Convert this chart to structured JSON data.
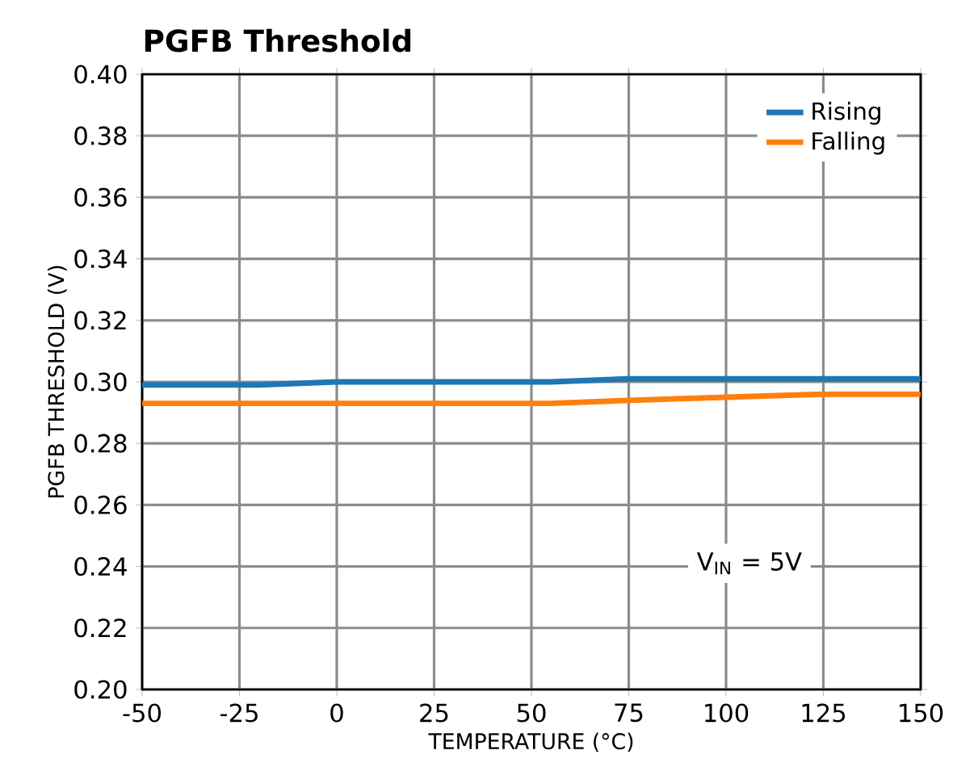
{
  "chart_data": {
    "type": "line",
    "title": "PGFB Threshold",
    "xlabel": "TEMPERATURE (°C)",
    "ylabel": "PGFB THRESHOLD (V)",
    "series": [
      {
        "name": "Rising",
        "color": "#1f77b4",
        "x": [
          -50,
          -20,
          0,
          25,
          55,
          75,
          100,
          125,
          150
        ],
        "values": [
          0.299,
          0.299,
          0.3,
          0.3,
          0.3,
          0.301,
          0.301,
          0.301,
          0.301
        ]
      },
      {
        "name": "Falling",
        "color": "#ff7f0e",
        "x": [
          -50,
          0,
          25,
          55,
          75,
          100,
          125,
          150
        ],
        "values": [
          0.293,
          0.293,
          0.293,
          0.293,
          0.294,
          0.295,
          0.296,
          0.296
        ]
      }
    ],
    "xlim": [
      -50,
      150
    ],
    "xticks": [
      -50,
      -25,
      0,
      25,
      50,
      75,
      100,
      125,
      150
    ],
    "ylim": [
      0.2,
      0.4
    ],
    "yticks": [
      {
        "value": 0.2,
        "label": "0.20"
      },
      {
        "value": 0.22,
        "label": "0.22"
      },
      {
        "value": 0.24,
        "label": "0.24"
      },
      {
        "value": 0.26,
        "label": "0.26"
      },
      {
        "value": 0.28,
        "label": "0.28"
      },
      {
        "value": 0.3,
        "label": "0.30"
      },
      {
        "value": 0.32,
        "label": "0.32"
      },
      {
        "value": 0.34,
        "label": "0.34"
      },
      {
        "value": 0.36,
        "label": "0.36"
      },
      {
        "value": 0.38,
        "label": "0.38"
      },
      {
        "value": 0.4,
        "label": "0.40"
      }
    ],
    "annotations": [
      "V$_{IN}$ = 5V"
    ],
    "grid": true,
    "legend": "top right",
    "marker": "none",
    "line_style": "solid"
  }
}
